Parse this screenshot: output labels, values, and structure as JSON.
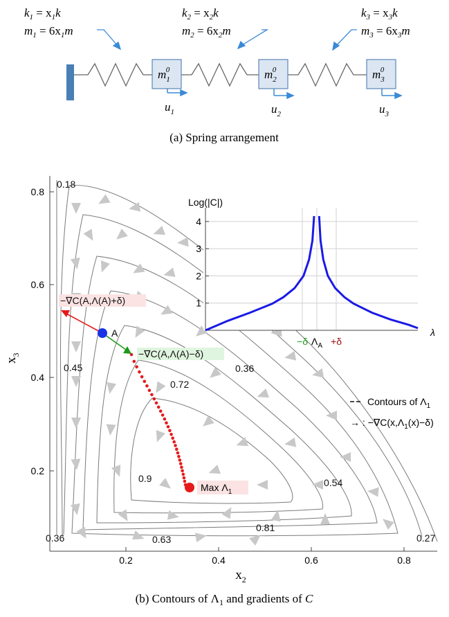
{
  "part_a": {
    "labels": [
      {
        "k": "k",
        "sub": "1",
        "eq": " = x",
        "sub2": "1",
        "rest": "k"
      },
      {
        "k": "k",
        "sub": "2",
        "eq": " = x",
        "sub2": "2",
        "rest": "k"
      },
      {
        "k": "k",
        "sub": "3",
        "eq": " = x",
        "sub2": "3",
        "rest": "k"
      }
    ],
    "masses_eq": [
      {
        "m": "m",
        "sub": "1",
        "eq": " = 6x",
        "sub2": "1",
        "rest": "m"
      },
      {
        "m": "m",
        "sub": "2",
        "eq": " = 6x",
        "sub2": "2",
        "rest": "m"
      },
      {
        "m": "m",
        "sub": "3",
        "eq": " = 6x",
        "sub2": "3",
        "rest": "m"
      }
    ],
    "box_labels": [
      {
        "m": "m",
        "sup": "0",
        "sub": "1"
      },
      {
        "m": "m",
        "sup": "0",
        "sub": "2"
      },
      {
        "m": "m",
        "sup": "0",
        "sub": "3"
      }
    ],
    "displacements": [
      {
        "u": "u",
        "sub": "1"
      },
      {
        "u": "u",
        "sub": "2"
      },
      {
        "u": "u",
        "sub": "3"
      }
    ],
    "caption": "(a) Spring arrangement"
  },
  "part_b": {
    "xlabel": "x",
    "xlabel_sub": "2",
    "ylabel": "x",
    "ylabel_sub": "3",
    "x_ticks": [
      "0.2",
      "0.4",
      "0.6",
      "0.8"
    ],
    "y_ticks": [
      "0.2",
      "0.4",
      "0.6",
      "0.8"
    ],
    "contour_labels": [
      "0.18",
      "0.45",
      "0.36",
      "0.72",
      "0.9",
      "0.54",
      "0.81",
      "0.63",
      "0.36",
      "0.27"
    ],
    "point_a": "A",
    "max_label": "Max Λ",
    "max_label_sub": "1",
    "grad_plus": "−∇C(A,Λ(A)+δ)",
    "grad_minus": "−∇C(A,Λ(A)−δ)",
    "legend_contour": "Contours of Λ",
    "legend_contour_sub": "1",
    "legend_arrow": "→ : −∇C(x,Λ",
    "legend_arrow_sub": "1",
    "legend_arrow_rest": "(x)−δ)",
    "caption_prefix": "(b) Contours of Λ",
    "caption_sub": "1",
    "caption_mid": " and gradients of ",
    "caption_c": "C",
    "colors": {
      "point_a": "#1a33e6",
      "max": "#e61a1a",
      "grad_plus": "#e61a1a",
      "grad_minus": "#1a9a1a",
      "spring": "#4a7fb5",
      "box_fill": "#dbe6f2"
    }
  },
  "chart_data": {
    "type": "line",
    "title": "",
    "ylabel": "Log(|C|)",
    "xlabel": "λ",
    "y_ticks": [
      "1",
      "2",
      "3",
      "4"
    ],
    "x_tick_labels": [
      {
        "text": "−δ",
        "color": "#1a9a1a"
      },
      {
        "text": "Λ",
        "sub": "A",
        "color": "#000000"
      },
      {
        "text": "+δ",
        "color": "#a01010"
      }
    ],
    "ylim": [
      0,
      4.2
    ],
    "series": [
      {
        "x": [
          -1.0,
          -0.8,
          -0.6,
          -0.4,
          -0.3,
          -0.2,
          -0.12,
          -0.07,
          -0.04,
          -0.025,
          0.025,
          0.04,
          0.07,
          0.12,
          0.2,
          0.3,
          0.4,
          0.6,
          0.8,
          1.0,
          1.1
        ],
        "y": [
          0.0,
          0.35,
          0.65,
          0.98,
          1.22,
          1.55,
          2.0,
          2.6,
          3.3,
          4.2,
          4.2,
          3.3,
          2.6,
          2.0,
          1.55,
          1.22,
          0.98,
          0.65,
          0.4,
          0.2,
          0.08
        ]
      }
    ]
  }
}
